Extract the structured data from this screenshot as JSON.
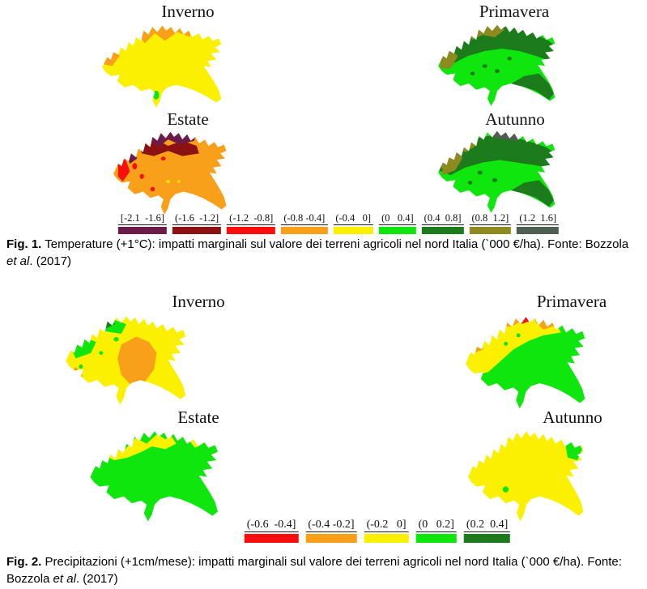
{
  "palette": {
    "plum": "#6B1B47",
    "darkred": "#8C1113",
    "red": "#F90D0D",
    "orange": "#F9A01B",
    "yellow": "#FAF000",
    "green": "#0EE60E",
    "darkgreen": "#1C7C1C",
    "olive": "#8E8A20",
    "graygreen": "#4E5E50"
  },
  "fig1": {
    "maps": [
      {
        "title": "Inverno"
      },
      {
        "title": "Primavera"
      },
      {
        "title": "Estate"
      },
      {
        "title": "Autunno"
      }
    ],
    "legend": [
      {
        "label": "[-2.1  -1.6]",
        "color": "#6B1B47"
      },
      {
        "label": "(-1.6  -1.2]",
        "color": "#8C1113"
      },
      {
        "label": "(-1.2  -0.8]",
        "color": "#F90D0D"
      },
      {
        "label": "(-0.8 -0.4]",
        "color": "#F9A01B"
      },
      {
        "label": "(-0.4   0]",
        "color": "#FAF000"
      },
      {
        "label": "(0   0.4]",
        "color": "#0EE60E"
      },
      {
        "label": "(0.4  0.8]",
        "color": "#1C7C1C"
      },
      {
        "label": "(0.8  1.2]",
        "color": "#8E8A20"
      },
      {
        "label": "(1.2  1.6]",
        "color": "#4E5E50"
      }
    ],
    "caption": {
      "label": "Fig. 1.",
      "body": " Temperature (+1°C): impatti marginali sul valore dei terreni agricoli nel nord Italia (`000 €/ha). Fonte: Bozzola ",
      "italic": "et al",
      "tail": ". (2017)"
    }
  },
  "fig2": {
    "maps": [
      {
        "title": "Inverno"
      },
      {
        "title": "Primavera"
      },
      {
        "title": "Estate"
      },
      {
        "title": "Autunno"
      }
    ],
    "legend": [
      {
        "label": "(-0.6  -0.4]",
        "color": "#F90D0D"
      },
      {
        "label": "(-0.4 -0.2]",
        "color": "#F9A01B"
      },
      {
        "label": "(-0.2   0]",
        "color": "#FAF000"
      },
      {
        "label": "(0   0.2]",
        "color": "#0EE60E"
      },
      {
        "label": "(0.2  0.4]",
        "color": "#1C7C1C"
      }
    ],
    "caption": {
      "label": "Fig. 2.",
      "body": " Precipitazioni (+1cm/mese): impatti marginali sul valore dei terreni agricoli nel nord Italia (`000 €/ha). Fonte: Bozzola ",
      "italic": "et al",
      "tail": ". (2017)"
    }
  }
}
